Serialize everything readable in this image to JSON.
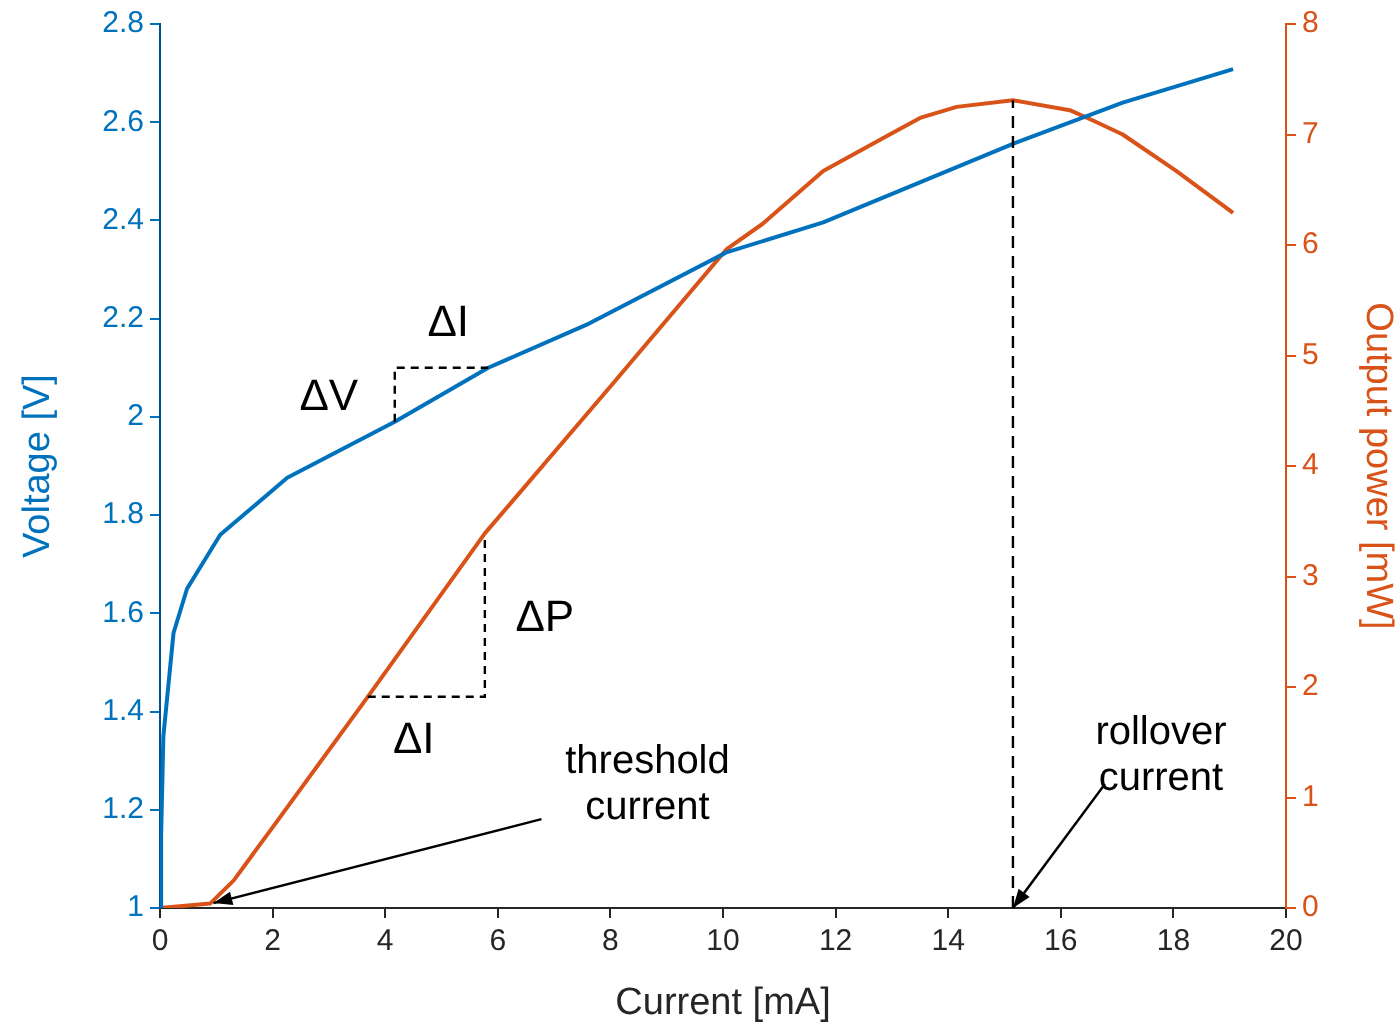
{
  "chart_data": {
    "type": "line",
    "xlabel": "Current [mA]",
    "ylabel": "Voltage [V]",
    "y2label": "Output power [mW]",
    "xlim": [
      0,
      20
    ],
    "xticks": [
      0,
      2,
      4,
      6,
      8,
      10,
      12,
      14,
      16,
      18,
      20
    ],
    "ylim": [
      1,
      2.8
    ],
    "yticks": [
      1,
      1.2,
      1.4,
      1.6,
      1.8,
      2,
      2.2,
      2.4,
      2.6,
      2.8
    ],
    "y2lim": [
      0,
      8
    ],
    "y2ticks": [
      0,
      1,
      2,
      3,
      4,
      5,
      6,
      7,
      8
    ],
    "marker": "none",
    "line_style": "solid",
    "series": [
      {
        "color": "#0072bd",
        "x": [
          0,
          0.02,
          0.06,
          0.24,
          0.48,
          1.07,
          2.26,
          4.17,
          5.83,
          7.62,
          10.06,
          11.78,
          15.15,
          17.1,
          19.06
        ],
        "values": [
          1,
          1.15,
          1.35,
          1.56,
          1.65,
          1.76,
          1.876,
          1.99,
          2.1,
          2.19,
          2.335,
          2.396,
          2.556,
          2.64,
          2.708
        ]
      },
      {
        "color": "#d95319",
        "axis": "y2",
        "x": [
          0,
          0.89,
          1.31,
          2,
          3.69,
          5.77,
          8,
          10.06,
          10.7,
          11.78,
          12.96,
          13.5,
          14.15,
          15.15,
          16.16,
          16.6,
          17.1,
          18.05,
          19.06
        ],
        "values": [
          0,
          0.04,
          0.25,
          0.73,
          1.91,
          3.39,
          4.72,
          5.96,
          6.19,
          6.67,
          7.0,
          7.15,
          7.25,
          7.31,
          7.22,
          7.12,
          7.0,
          6.67,
          6.29
        ]
      }
    ],
    "ref_lines": [
      {
        "axis": "x",
        "value": 15.15,
        "color": "#000000",
        "line_style": "dashed"
      }
    ],
    "annotations": [
      {
        "text": "ΔV",
        "x": 4.17,
        "y": 1.99
      },
      {
        "text": "ΔI",
        "x": 5.83,
        "y": 2.1
      },
      {
        "text": "ΔP",
        "x": 5.77,
        "y": 1.76
      },
      {
        "text": "ΔI",
        "x": 3.69,
        "y": 1.43
      },
      {
        "text": "threshold\ncurrent",
        "x": 0.95,
        "y": 1.01
      },
      {
        "text": "rollover\ncurrent",
        "x": 15.15,
        "y": 1.0
      }
    ]
  }
}
